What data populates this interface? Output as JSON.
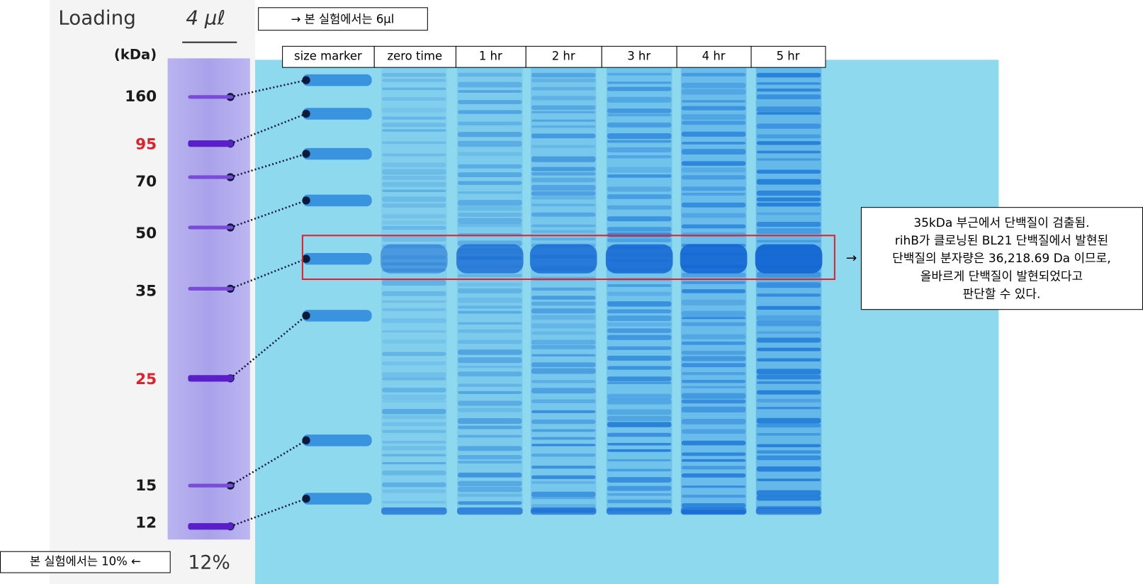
{
  "ladder": {
    "header": "Loading",
    "volume": "4 μℓ",
    "unit": "(kDa)",
    "markers": [
      {
        "label": "160",
        "color": "#1a1a1a"
      },
      {
        "label": "95",
        "color": "#e0202a"
      },
      {
        "label": "70",
        "color": "#1a1a1a"
      },
      {
        "label": "50",
        "color": "#1a1a1a"
      },
      {
        "label": "35",
        "color": "#1a1a1a"
      },
      {
        "label": "25",
        "color": "#e0202a"
      },
      {
        "label": "15",
        "color": "#1a1a1a"
      },
      {
        "label": "12",
        "color": "#1a1a1a"
      }
    ],
    "percent": "12%"
  },
  "notes": {
    "top": "→ 본 실험에서는 6μl",
    "bottom": "본 실험에서는 10% ←"
  },
  "lanes": [
    "size marker",
    "zero time",
    "1 hr",
    "2 hr",
    "3 hr",
    "4 hr",
    "5 hr"
  ],
  "annotation": {
    "arrow": "→",
    "lines": [
      "35kDa 부근에서 단백질이 검출됨.",
      "rihB가 클로닝된 BL21 단백질에서 발현된",
      "단백질의 분자량은 36,218.69 Da 이므로,",
      "올바르게 단백질이 발현되었다고",
      "판단할 수 있다."
    ]
  }
}
